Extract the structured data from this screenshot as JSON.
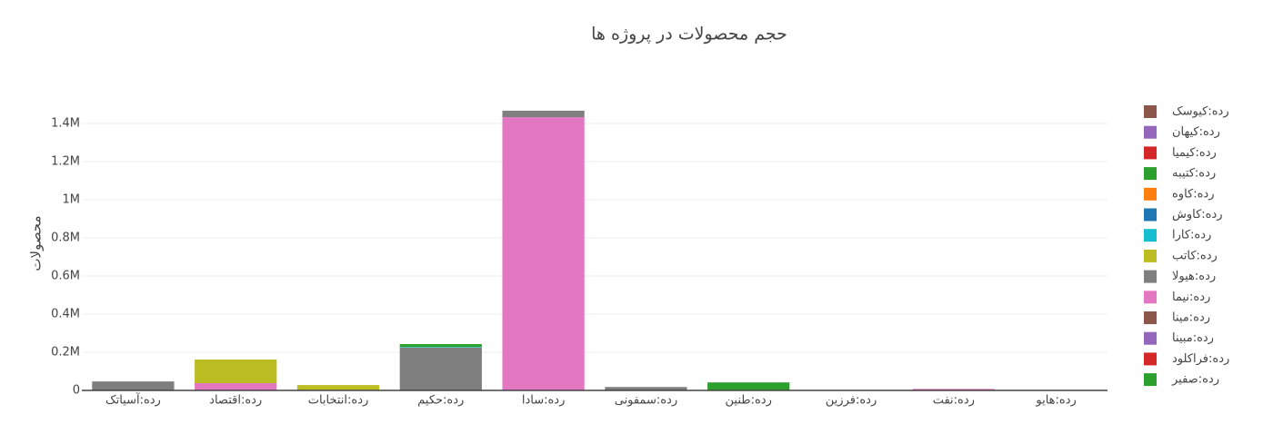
{
  "chart_data": {
    "type": "bar",
    "stacked": true,
    "title": "حجم محصولات در پروژه ها",
    "y_label": "محصولات",
    "categories": [
      "رده:آسیاتک",
      "رده:اقتصاد",
      "رده:انتخابات",
      "رده:حکیم",
      "رده:سادا",
      "رده:سمفونی",
      "رده:طنین",
      "رده:فرزین",
      "رده:نفت",
      "رده:هایو"
    ],
    "series": [
      {
        "name": "رده:کیوسک",
        "color": "#8c564b",
        "values": [
          0,
          0,
          0,
          0,
          0,
          0,
          0,
          0,
          0,
          0
        ]
      },
      {
        "name": "رده:کیهان",
        "color": "#9467bd",
        "values": [
          0,
          0,
          0,
          0,
          0,
          0,
          0,
          0,
          0,
          0
        ]
      },
      {
        "name": "رده:کیمیا",
        "color": "#d62728",
        "values": [
          0,
          0,
          0,
          0,
          0,
          0,
          0,
          0,
          0,
          0
        ]
      },
      {
        "name": "رده:کتیبه",
        "color": "#2ca02c",
        "values": [
          0,
          0,
          0,
          15000,
          0,
          0,
          0,
          0,
          0,
          0
        ]
      },
      {
        "name": "رده:کاوه",
        "color": "#ff7f0e",
        "values": [
          0,
          0,
          0,
          0,
          0,
          0,
          0,
          0,
          0,
          0
        ]
      },
      {
        "name": "رده:کاوش",
        "color": "#1f77b4",
        "values": [
          0,
          0,
          0,
          0,
          0,
          0,
          0,
          0,
          0,
          0
        ]
      },
      {
        "name": "رده:کارا",
        "color": "#17becf",
        "values": [
          0,
          0,
          0,
          3000,
          0,
          0,
          0,
          0,
          0,
          0
        ]
      },
      {
        "name": "رده:کاتب",
        "color": "#bcbd22",
        "values": [
          0,
          124000,
          28000,
          0,
          0,
          0,
          0,
          0,
          0,
          0
        ]
      },
      {
        "name": "رده:هیولا",
        "color": "#7f7f7f",
        "values": [
          47000,
          0,
          0,
          225000,
          34000,
          18000,
          0,
          2000,
          0,
          2000
        ]
      },
      {
        "name": "رده:نیما",
        "color": "#e377c2",
        "values": [
          0,
          38000,
          0,
          0,
          1433000,
          0,
          0,
          0,
          8000,
          0
        ]
      },
      {
        "name": "رده:مینا",
        "color": "#8c564b",
        "values": [
          0,
          0,
          0,
          0,
          0,
          0,
          0,
          0,
          0,
          0
        ]
      },
      {
        "name": "رده:مبینا",
        "color": "#9467bd",
        "values": [
          0,
          0,
          0,
          0,
          0,
          0,
          0,
          0,
          0,
          0
        ]
      },
      {
        "name": "رده:فراکلود",
        "color": "#d62728",
        "values": [
          0,
          0,
          0,
          0,
          0,
          0,
          0,
          0,
          0,
          0
        ]
      },
      {
        "name": "رده:صفیر",
        "color": "#2ca02c",
        "values": [
          0,
          0,
          0,
          0,
          0,
          0,
          42000,
          0,
          0,
          0
        ]
      }
    ],
    "ylim": [
      0,
      1550000
    ],
    "yticks": [
      0,
      {
        "value": 200000,
        "label": "0.2M"
      },
      {
        "value": 400000,
        "label": "0.4M"
      },
      {
        "value": 600000,
        "label": "0.6M"
      },
      {
        "value": 800000,
        "label": "0.8M"
      },
      {
        "value": 1000000,
        "label": "1M"
      },
      {
        "value": 1200000,
        "label": "1.2M"
      },
      {
        "value": 1400000,
        "label": "1.4M"
      }
    ],
    "grid": true
  }
}
